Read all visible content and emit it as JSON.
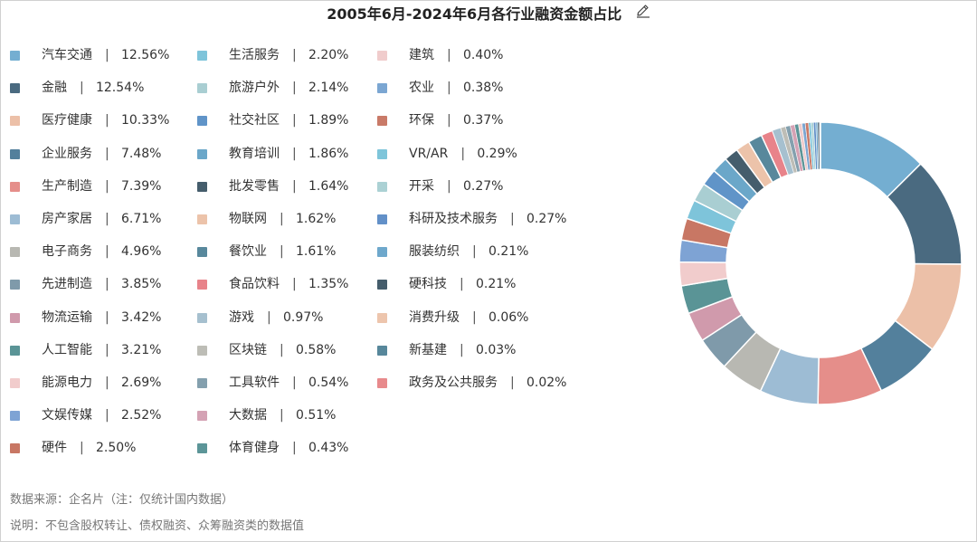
{
  "chart_data": {
    "type": "pie",
    "title": "2005年6月-2024年6月各行业融资金额占比",
    "unit": "%",
    "legend_position": "left",
    "slices": [
      {
        "label": "汽车交通",
        "value": 12.56,
        "color": "#74aed1"
      },
      {
        "label": "金融",
        "value": 12.54,
        "color": "#4a6a80"
      },
      {
        "label": "医疗健康",
        "value": 10.33,
        "color": "#ecc0a8"
      },
      {
        "label": "企业服务",
        "value": 7.48,
        "color": "#53809c"
      },
      {
        "label": "生产制造",
        "value": 7.39,
        "color": "#e58e8a"
      },
      {
        "label": "房产家居",
        "value": 6.71,
        "color": "#9dbcd4"
      },
      {
        "label": "电子商务",
        "value": 4.96,
        "color": "#b8b8b2"
      },
      {
        "label": "先进制造",
        "value": 3.85,
        "color": "#7f9aaa"
      },
      {
        "label": "物流运输",
        "value": 3.42,
        "color": "#d09aac"
      },
      {
        "label": "人工智能",
        "value": 3.21,
        "color": "#5a9496"
      },
      {
        "label": "能源电力",
        "value": 2.69,
        "color": "#f1cccc"
      },
      {
        "label": "文娱传媒",
        "value": 2.52,
        "color": "#7ea3d4"
      },
      {
        "label": "硬件",
        "value": 2.5,
        "color": "#c87764"
      },
      {
        "label": "生活服务",
        "value": 2.2,
        "color": "#7ec4da"
      },
      {
        "label": "旅游户外",
        "value": 2.14,
        "color": "#a9ced2"
      },
      {
        "label": "社交社区",
        "value": 1.89,
        "color": "#6094c8"
      },
      {
        "label": "教育培训",
        "value": 1.86,
        "color": "#6ba7c9"
      },
      {
        "label": "批发零售",
        "value": 1.64,
        "color": "#455d6c"
      },
      {
        "label": "物联网",
        "value": 1.62,
        "color": "#ecc3aa"
      },
      {
        "label": "餐饮业",
        "value": 1.61,
        "color": "#58889c"
      },
      {
        "label": "食品饮料",
        "value": 1.35,
        "color": "#e8838a"
      },
      {
        "label": "游戏",
        "value": 0.97,
        "color": "#a6c0cf"
      },
      {
        "label": "区块链",
        "value": 0.58,
        "color": "#bdbdb6"
      },
      {
        "label": "工具软件",
        "value": 0.54,
        "color": "#84a0ae"
      },
      {
        "label": "大数据",
        "value": 0.51,
        "color": "#d4a2b4"
      },
      {
        "label": "体育健身",
        "value": 0.43,
        "color": "#5c9598"
      },
      {
        "label": "建筑",
        "value": 0.4,
        "color": "#f0cccc"
      },
      {
        "label": "农业",
        "value": 0.38,
        "color": "#7ba6d2"
      },
      {
        "label": "环保",
        "value": 0.37,
        "color": "#c97a68"
      },
      {
        "label": "VR/AR",
        "value": 0.29,
        "color": "#7ec5da"
      },
      {
        "label": "开采",
        "value": 0.27,
        "color": "#abd1d4"
      },
      {
        "label": "科研及技术服务",
        "value": 0.27,
        "color": "#6290c8"
      },
      {
        "label": "服装纺织",
        "value": 0.21,
        "color": "#6ea8cc"
      },
      {
        "label": "硬科技",
        "value": 0.21,
        "color": "#455d6c"
      },
      {
        "label": "消费升级",
        "value": 0.06,
        "color": "#edc5ad"
      },
      {
        "label": "新基建",
        "value": 0.03,
        "color": "#57879b"
      },
      {
        "label": "政务及公共服务",
        "value": 0.02,
        "color": "#e88a8c"
      }
    ]
  },
  "footer": {
    "source": "数据来源：企名片（注：仅统计国内数据）",
    "note": "说明：不包含股权转让、债权融资、众筹融资类的数据值"
  },
  "legend": {
    "separator": "|"
  },
  "icons": {
    "edit": "edit-icon"
  }
}
